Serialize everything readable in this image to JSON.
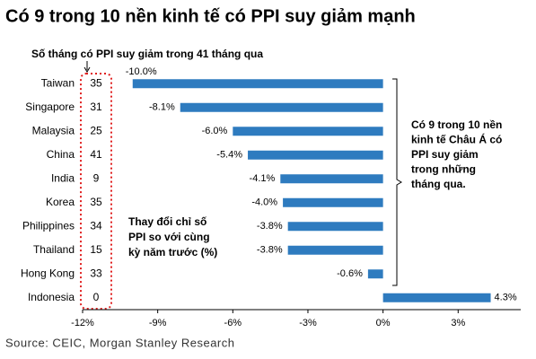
{
  "chart_data": {
    "type": "bar",
    "orientation": "horizontal",
    "title": "Có 9 trong 10 nền kinh tế có PPI suy giảm mạnh",
    "months_header": "Số tháng có PPI suy giảm trong 41 tháng qua",
    "categories": [
      "Taiwan",
      "Singapore",
      "Malaysia",
      "China",
      "India",
      "Korea",
      "Philippines",
      "Thailand",
      "Hong Kong",
      "Indonesia"
    ],
    "months": [
      35,
      31,
      25,
      41,
      9,
      35,
      34,
      15,
      33,
      0
    ],
    "values": [
      -10.0,
      -8.1,
      -6.0,
      -5.4,
      -4.1,
      -4.0,
      -3.8,
      -3.8,
      -0.6,
      4.3
    ],
    "value_labels": [
      "-10.0%",
      "-8.1%",
      "-6.0%",
      "-5.4%",
      "-4.1%",
      "-4.0%",
      "-3.8%",
      "-3.8%",
      "-0.6%",
      "4.3%"
    ],
    "color": "#2e7bbf",
    "xlim": [
      -12,
      5.5
    ],
    "xticks": [
      {
        "value": -12,
        "label": "-12%"
      },
      {
        "value": -9,
        "label": "-9%"
      },
      {
        "value": -6,
        "label": "-6%"
      },
      {
        "value": -3,
        "label": "-3%"
      },
      {
        "value": 0,
        "label": "0%"
      },
      {
        "value": 3,
        "label": "3%"
      }
    ],
    "annotation_bracket": [
      "Có 9 trong 10 nền",
      "kinh tế Châu Á có",
      "PPI suy giảm",
      "trong những",
      "tháng qua."
    ],
    "annotation_axis": [
      "Thay đổi chỉ số",
      "PPI so với cùng",
      "kỳ năm trước (%)"
    ],
    "source": "Source: CEIC, Morgan Stanley Research"
  }
}
